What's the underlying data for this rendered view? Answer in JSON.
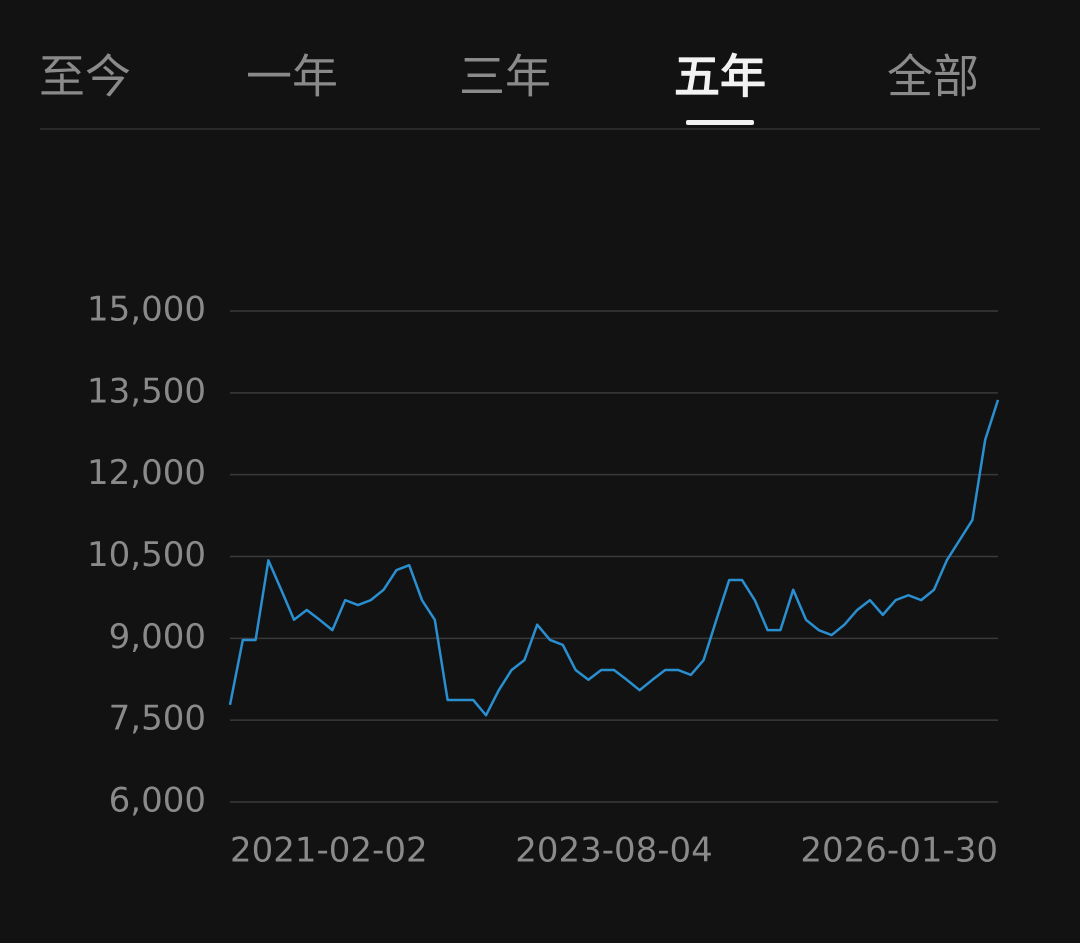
{
  "tabs": [
    "至今",
    "一年",
    "三年",
    "五年",
    "全部"
  ],
  "active_tab": 3,
  "chart_data": {
    "type": "line",
    "categories": [
      "2021-02-02",
      null,
      null,
      null,
      null,
      null,
      null,
      null,
      null,
      null,
      null,
      null,
      null,
      null,
      null,
      null,
      null,
      null,
      null,
      null,
      null,
      null,
      null,
      null,
      null,
      null,
      null,
      null,
      null,
      null,
      "2023-08-04",
      null,
      null,
      null,
      null,
      null,
      null,
      null,
      null,
      null,
      null,
      null,
      null,
      null,
      null,
      null,
      null,
      null,
      null,
      null,
      null,
      null,
      null,
      null,
      null,
      null,
      null,
      null,
      null,
      null,
      "2026-01-30"
    ],
    "series": [
      {
        "color": "#2a8fd0",
        "values": [
          7780,
          8970,
          8970,
          10430,
          9890,
          9340,
          9520,
          9340,
          9150,
          9700,
          9610,
          9700,
          9890,
          10250,
          10340,
          9700,
          9340,
          7870,
          7870,
          7870,
          7590,
          8050,
          8420,
          8600,
          9250,
          8970,
          8880,
          8420,
          8240,
          8420,
          8420,
          8240,
          8050,
          8240,
          8420,
          8420,
          8330,
          8600,
          9340,
          10070,
          10070,
          9700,
          9150,
          9150,
          9890,
          9340,
          9150,
          9060,
          9250,
          9520,
          9700,
          9430,
          9700,
          9790,
          9700,
          9890,
          10430,
          10800,
          11170,
          12640,
          13370
        ]
      }
    ],
    "ylim": [
      6000,
      15000
    ],
    "yticks": [
      {
        "value": 6000,
        "label": "6,000"
      },
      {
        "value": 7500,
        "label": "7,500"
      },
      {
        "value": 9000,
        "label": "9,000"
      },
      {
        "value": 10500,
        "label": "10,500"
      },
      {
        "value": 12000,
        "label": "12,000"
      },
      {
        "value": 13500,
        "label": "13,500"
      },
      {
        "value": 15000,
        "label": "15,000"
      }
    ],
    "grid": true
  }
}
